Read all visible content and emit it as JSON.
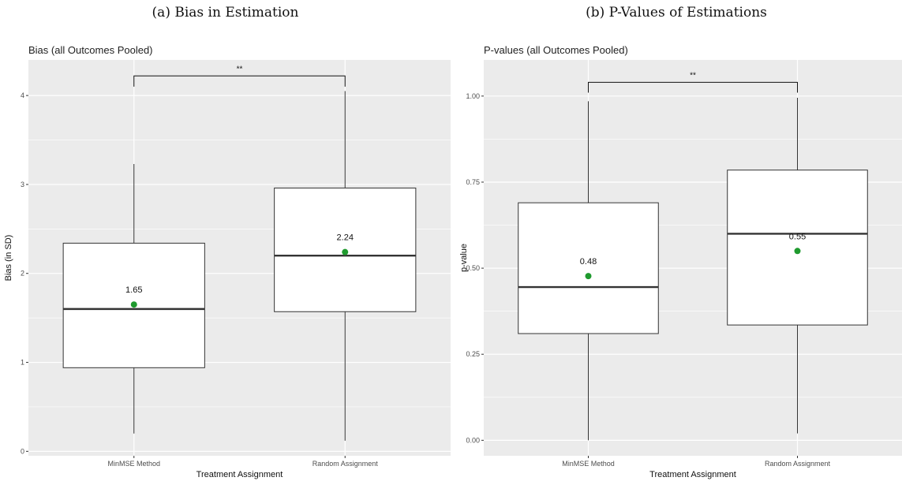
{
  "captions": {
    "a": "(a) Bias in Estimation",
    "b": "(b) P-Values of Estimations"
  },
  "colors": {
    "panel_bg": "#ebebeb",
    "grid": "#ffffff",
    "box_fill": "#ffffff",
    "box_stroke": "#333333",
    "mean_point": "#1f9a2e"
  },
  "chart_data": [
    {
      "type": "boxplot",
      "title": "Bias (all Outcomes Pooled)",
      "xlabel": "Treatment Assignment",
      "ylabel": "Bias (in SD)",
      "ylim": [
        -0.05,
        4.4
      ],
      "yticks": [
        0,
        1,
        2,
        3,
        4
      ],
      "ytick_labels": [
        "0",
        "1",
        "2",
        "3",
        "4"
      ],
      "categories": [
        "MinMSE Method",
        "Random Assignment"
      ],
      "boxes": [
        {
          "category": "MinMSE Method",
          "whisker_low": 0.2,
          "q1": 0.94,
          "median": 1.6,
          "q3": 2.34,
          "whisker_high": 3.23,
          "mean": 1.65,
          "mean_label": "1.65"
        },
        {
          "category": "Random Assignment",
          "whisker_low": 0.12,
          "q1": 1.57,
          "median": 2.2,
          "q3": 2.96,
          "whisker_high": 4.05,
          "mean": 2.24,
          "mean_label": "2.24"
        }
      ],
      "significance": {
        "label": "**",
        "y": 4.22,
        "drop": 0.12
      },
      "grid": true
    },
    {
      "type": "boxplot",
      "title": "P-values (all Outcomes Pooled)",
      "xlabel": "Treatment Assignment",
      "ylabel": "p-value",
      "ylim": [
        -0.045,
        1.105
      ],
      "yticks": [
        0,
        0.25,
        0.5,
        0.75,
        1.0
      ],
      "ytick_labels": [
        "0.00",
        "0.25",
        "0.50",
        "0.75",
        "1.00"
      ],
      "categories": [
        "MinMSE Method",
        "Random Assignment"
      ],
      "boxes": [
        {
          "category": "MinMSE Method",
          "whisker_low": 0.0,
          "q1": 0.31,
          "median": 0.445,
          "q3": 0.69,
          "whisker_high": 0.985,
          "mean": 0.477,
          "mean_label": "0.48"
        },
        {
          "category": "Random Assignment",
          "whisker_low": 0.02,
          "q1": 0.335,
          "median": 0.6,
          "q3": 0.785,
          "whisker_high": 0.995,
          "mean": 0.55,
          "mean_label": "0.55"
        }
      ],
      "significance": {
        "label": "**",
        "y": 1.04,
        "drop": 0.03
      },
      "grid": true
    }
  ]
}
